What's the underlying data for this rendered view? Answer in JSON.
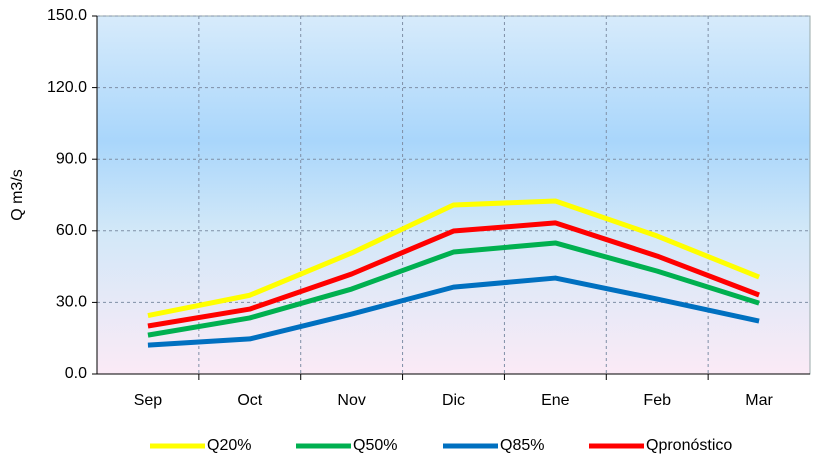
{
  "chart_data": {
    "type": "line",
    "y_label": "Q m3/s",
    "categories": [
      "Sep",
      "Oct",
      "Nov",
      "Dic",
      "Ene",
      "Feb",
      "Mar"
    ],
    "series": [
      {
        "name": "Q20%",
        "color": "#ffff00",
        "values": [
          24.5,
          33,
          50.7,
          70.8,
          72.5,
          57.8,
          40.6
        ]
      },
      {
        "name": "Q50%",
        "color": "#00b050",
        "values": [
          16.3,
          23.5,
          35.6,
          51.1,
          54.9,
          43.1,
          29.7
        ]
      },
      {
        "name": "Q85%",
        "color": "#0070c0",
        "values": [
          12.1,
          14.7,
          25.1,
          36.4,
          40.2,
          31.4,
          22.2
        ]
      },
      {
        "name": "Qpronóstico",
        "color": "#ff0000",
        "values": [
          20.1,
          27.2,
          41.9,
          59.9,
          63.3,
          49.4,
          33.1
        ]
      }
    ],
    "ylim": [
      0,
      150
    ],
    "yticks": [
      {
        "value": 0,
        "label": "0.0"
      },
      {
        "value": 30,
        "label": "30.0"
      },
      {
        "value": 60,
        "label": "60.0"
      },
      {
        "value": 90,
        "label": "90.0"
      },
      {
        "value": 120,
        "label": "120.0"
      },
      {
        "value": 150,
        "label": "150.0"
      }
    ],
    "grid": true,
    "legend": "bottom"
  }
}
